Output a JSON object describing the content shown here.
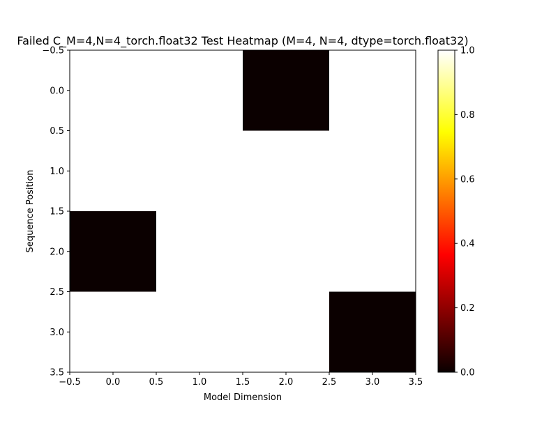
{
  "chart_data": {
    "type": "heatmap",
    "title": "Failed C_M=4,N=4_torch.float32 Test Heatmap (M=4, N=4, dtype=torch.float32)",
    "xlabel": "Model Dimension",
    "ylabel": "Sequence Position",
    "xlim": [
      -0.5,
      3.5
    ],
    "ylim": [
      3.5,
      -0.5
    ],
    "x_ticks": [
      -0.5,
      0.0,
      0.5,
      1.0,
      1.5,
      2.0,
      2.5,
      3.0,
      3.5
    ],
    "y_ticks": [
      -0.5,
      0.0,
      0.5,
      1.0,
      1.5,
      2.0,
      2.5,
      3.0,
      3.5
    ],
    "x_tick_labels": [
      "−0.5",
      "0.0",
      "0.5",
      "1.0",
      "1.5",
      "2.0",
      "2.5",
      "3.0",
      "3.5"
    ],
    "y_tick_labels": [
      "−0.5",
      "0.0",
      "0.5",
      "1.0",
      "1.5",
      "2.0",
      "2.5",
      "3.0",
      "3.5"
    ],
    "values": [
      [
        1,
        1,
        0,
        1
      ],
      [
        1,
        1,
        1,
        1
      ],
      [
        0,
        1,
        1,
        1
      ],
      [
        1,
        1,
        1,
        0
      ]
    ],
    "colormap": "hot",
    "colorbar": {
      "range": [
        0.0,
        1.0
      ],
      "ticks": [
        0.0,
        0.2,
        0.4,
        0.6,
        0.8,
        1.0
      ],
      "tick_labels": [
        "0.0",
        "0.2",
        "0.4",
        "0.6",
        "0.8",
        "1.0"
      ]
    },
    "grid": false
  }
}
